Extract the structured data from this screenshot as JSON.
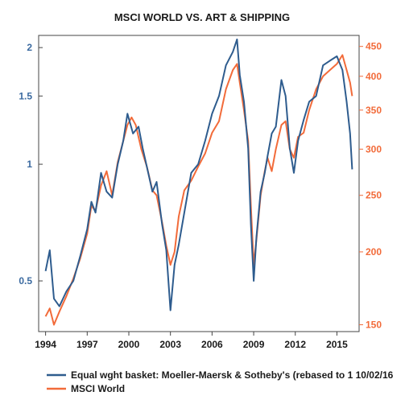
{
  "chart_data": {
    "type": "line",
    "title": "MSCI WORLD VS. ART & SHIPPING",
    "xlabel": "",
    "ylabel_left": "",
    "ylabel_right": "",
    "xlim": [
      1993.5,
      2016.6
    ],
    "x_ticks": [
      1994,
      1997,
      2000,
      2003,
      2006,
      2009,
      2012,
      2015
    ],
    "x_tick_labels": [
      "1994",
      "1997",
      "2000",
      "2003",
      "2006",
      "2009",
      "2012",
      "2015"
    ],
    "y_left": {
      "scale": "log",
      "range": [
        0.37,
        2.15
      ],
      "ticks": [
        0.5,
        1,
        1.5,
        2
      ],
      "tick_labels": [
        "0.5",
        "1",
        "1.5",
        "2"
      ]
    },
    "y_right": {
      "scale": "log",
      "range": [
        146,
        470
      ],
      "ticks": [
        150,
        200,
        250,
        300,
        350,
        400,
        450
      ],
      "tick_labels": [
        "150",
        "200",
        "250",
        "300",
        "350",
        "400",
        "450"
      ]
    },
    "legend_position": "bottom-left",
    "grid": false,
    "series": [
      {
        "name": "Equal wght basket:  Moeller-Maersk & Sotheby's (rebased to 1 10/02/16",
        "axis": "left",
        "color": "#2e5c8e",
        "x": [
          1994.0,
          1994.3,
          1994.6,
          1995.0,
          1995.5,
          1996.0,
          1996.5,
          1997.0,
          1997.3,
          1997.6,
          1998.0,
          1998.4,
          1998.8,
          1999.2,
          1999.6,
          1999.9,
          2000.3,
          2000.7,
          2001.0,
          2001.4,
          2001.7,
          2002.0,
          2002.4,
          2002.7,
          2003.0,
          2003.3,
          2003.6,
          2004.0,
          2004.5,
          2005.0,
          2005.5,
          2006.0,
          2006.5,
          2007.0,
          2007.5,
          2007.8,
          2008.0,
          2008.3,
          2008.6,
          2008.8,
          2009.0,
          2009.2,
          2009.5,
          2009.8,
          2010.0,
          2010.3,
          2010.6,
          2011.0,
          2011.3,
          2011.6,
          2011.9,
          2012.2,
          2012.6,
          2013.0,
          2013.5,
          2014.0,
          2014.5,
          2015.0,
          2015.4,
          2015.7,
          2015.95,
          2016.1
        ],
        "values": [
          0.53,
          0.6,
          0.45,
          0.43,
          0.47,
          0.5,
          0.58,
          0.68,
          0.8,
          0.75,
          0.95,
          0.85,
          0.82,
          1.0,
          1.15,
          1.35,
          1.2,
          1.25,
          1.1,
          0.95,
          0.85,
          0.9,
          0.7,
          0.6,
          0.42,
          0.55,
          0.62,
          0.75,
          0.95,
          1.0,
          1.15,
          1.35,
          1.5,
          1.8,
          1.95,
          2.1,
          1.7,
          1.45,
          1.1,
          0.7,
          0.5,
          0.65,
          0.85,
          0.95,
          1.05,
          1.2,
          1.25,
          1.65,
          1.5,
          1.1,
          0.95,
          1.15,
          1.3,
          1.45,
          1.5,
          1.8,
          1.85,
          1.9,
          1.75,
          1.45,
          1.2,
          0.97
        ]
      },
      {
        "name": "MSCI World",
        "axis": "right",
        "color": "#f26b3a",
        "x": [
          1994.0,
          1994.3,
          1994.6,
          1995.0,
          1995.5,
          1996.0,
          1996.5,
          1997.0,
          1997.3,
          1997.6,
          1998.0,
          1998.4,
          1998.8,
          1999.2,
          1999.6,
          1999.9,
          2000.2,
          2000.5,
          2000.9,
          2001.3,
          2001.7,
          2002.0,
          2002.4,
          2002.7,
          2003.0,
          2003.3,
          2003.6,
          2004.0,
          2004.5,
          2005.0,
          2005.5,
          2006.0,
          2006.5,
          2007.0,
          2007.5,
          2007.8,
          2008.0,
          2008.3,
          2008.6,
          2008.8,
          2009.0,
          2009.2,
          2009.5,
          2009.8,
          2010.0,
          2010.3,
          2010.6,
          2011.0,
          2011.3,
          2011.6,
          2011.9,
          2012.2,
          2012.6,
          2013.0,
          2013.5,
          2014.0,
          2014.5,
          2015.0,
          2015.4,
          2015.7,
          2015.95,
          2016.1
        ],
        "values": [
          155,
          160,
          150,
          158,
          168,
          180,
          195,
          215,
          240,
          235,
          260,
          275,
          250,
          285,
          310,
          330,
          340,
          330,
          300,
          280,
          255,
          250,
          225,
          205,
          190,
          200,
          230,
          255,
          265,
          280,
          295,
          320,
          335,
          380,
          410,
          420,
          390,
          350,
          310,
          240,
          190,
          210,
          250,
          275,
          290,
          275,
          300,
          330,
          335,
          300,
          290,
          315,
          320,
          350,
          380,
          400,
          410,
          420,
          435,
          410,
          390,
          370
        ]
      }
    ]
  }
}
